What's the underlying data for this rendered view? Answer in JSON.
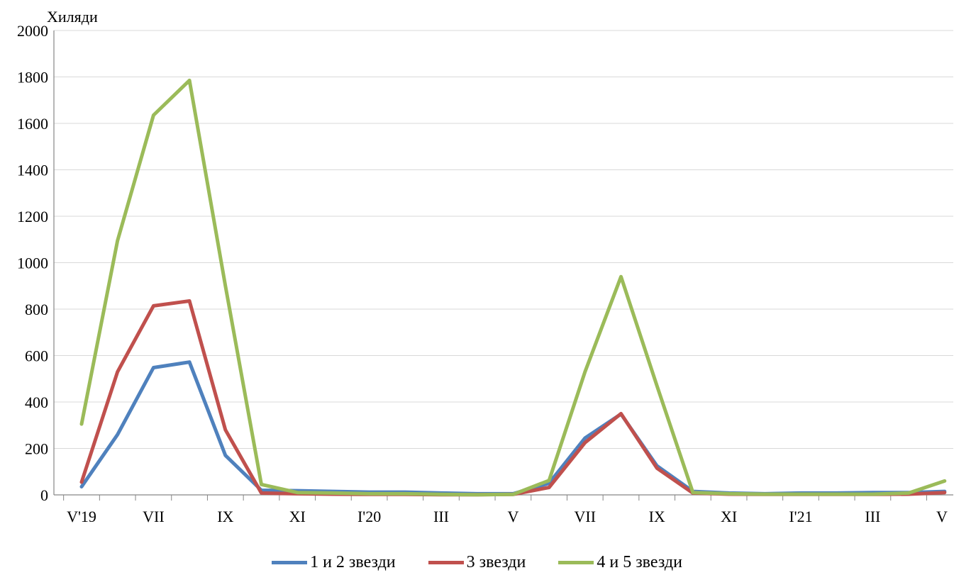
{
  "chart_data": {
    "type": "line",
    "ylabel": "Хиляди",
    "ylim": [
      0,
      2000
    ],
    "yticks": [
      "0",
      "200",
      "400",
      "600",
      "800",
      "1000",
      "1200",
      "1400",
      "1600",
      "1800",
      "2000"
    ],
    "x_tick_labels": [
      "V'19",
      "VII",
      "IX",
      "XI",
      "I'20",
      "III",
      "V",
      "VII",
      "IX",
      "XI",
      "I'21",
      "III",
      "V"
    ],
    "x": [
      "V'19",
      "VI'19",
      "VII'19",
      "VIII'19",
      "IX'19",
      "X'19",
      "XI'19",
      "XII'19",
      "I'20",
      "II'20",
      "III'20",
      "IV'20",
      "V'20",
      "VI'20",
      "VII'20",
      "VIII'20",
      "IX'20",
      "X'20",
      "XI'20",
      "XII'20",
      "I'21",
      "II'21",
      "III'21",
      "IV'21",
      "V'21"
    ],
    "grid": true,
    "legend_position": "bottom",
    "series": [
      {
        "name": "1 и 2 звезди",
        "color": "#4f81bd",
        "values": [
          35,
          260,
          548,
          572,
          170,
          20,
          18,
          15,
          12,
          12,
          8,
          5,
          5,
          50,
          245,
          348,
          125,
          15,
          8,
          5,
          8,
          8,
          10,
          10,
          15
        ]
      },
      {
        "name": "3 звезди",
        "color": "#c0504d",
        "values": [
          55,
          530,
          814,
          835,
          280,
          8,
          5,
          3,
          2,
          2,
          1,
          1,
          2,
          32,
          225,
          350,
          115,
          8,
          3,
          2,
          2,
          2,
          2,
          3,
          10
        ]
      },
      {
        "name": "4 и 5 звезди",
        "color": "#9bbb59",
        "values": [
          305,
          1095,
          1635,
          1785,
          900,
          45,
          10,
          8,
          5,
          5,
          2,
          1,
          2,
          62,
          530,
          940,
          470,
          10,
          5,
          3,
          3,
          3,
          3,
          8,
          60
        ]
      }
    ]
  }
}
